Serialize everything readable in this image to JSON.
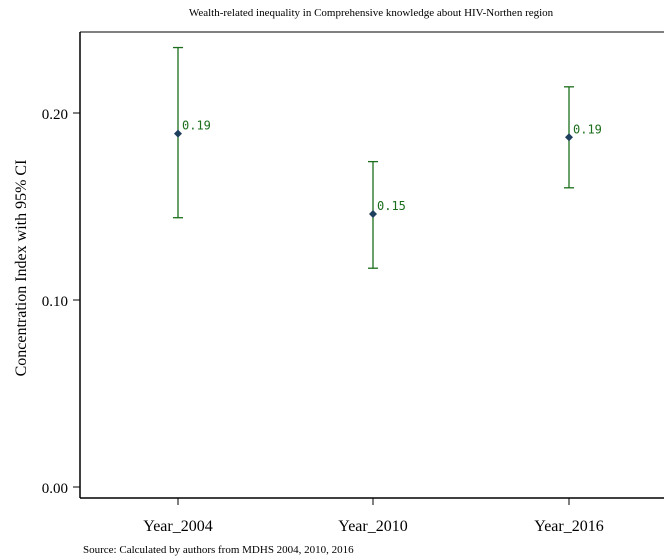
{
  "chart_data": {
    "type": "scatter",
    "title": "Wealth-related inequality  in  Comprehensive knowledge about HIV-Northen region",
    "ylabel": "Concentration Index with 95% CI",
    "xlabel": "",
    "categories": [
      "Year_2004",
      "Year_2010",
      "Year_2016"
    ],
    "values": [
      0.189,
      0.146,
      0.187
    ],
    "ci_lower": [
      0.144,
      0.117,
      0.16
    ],
    "ci_upper": [
      0.235,
      0.174,
      0.214
    ],
    "data_labels": [
      "0.19",
      "0.15",
      "0.19"
    ],
    "ylim": [
      0,
      0.235
    ],
    "yticks": [
      {
        "value": 0.0,
        "label": "0.00"
      },
      {
        "value": 0.1,
        "label": "0.10"
      },
      {
        "value": 0.2,
        "label": "0.20"
      }
    ],
    "grid": false,
    "legend": "none",
    "colors": {
      "point": "#1f3f5f",
      "errorbar": "#1b6e1b",
      "label": "#1b6e1b",
      "axis": "#000000",
      "frame": "#000000"
    }
  },
  "source_note": "Source: Calculated  by authors from MDHS 2004, 2010, 2016"
}
